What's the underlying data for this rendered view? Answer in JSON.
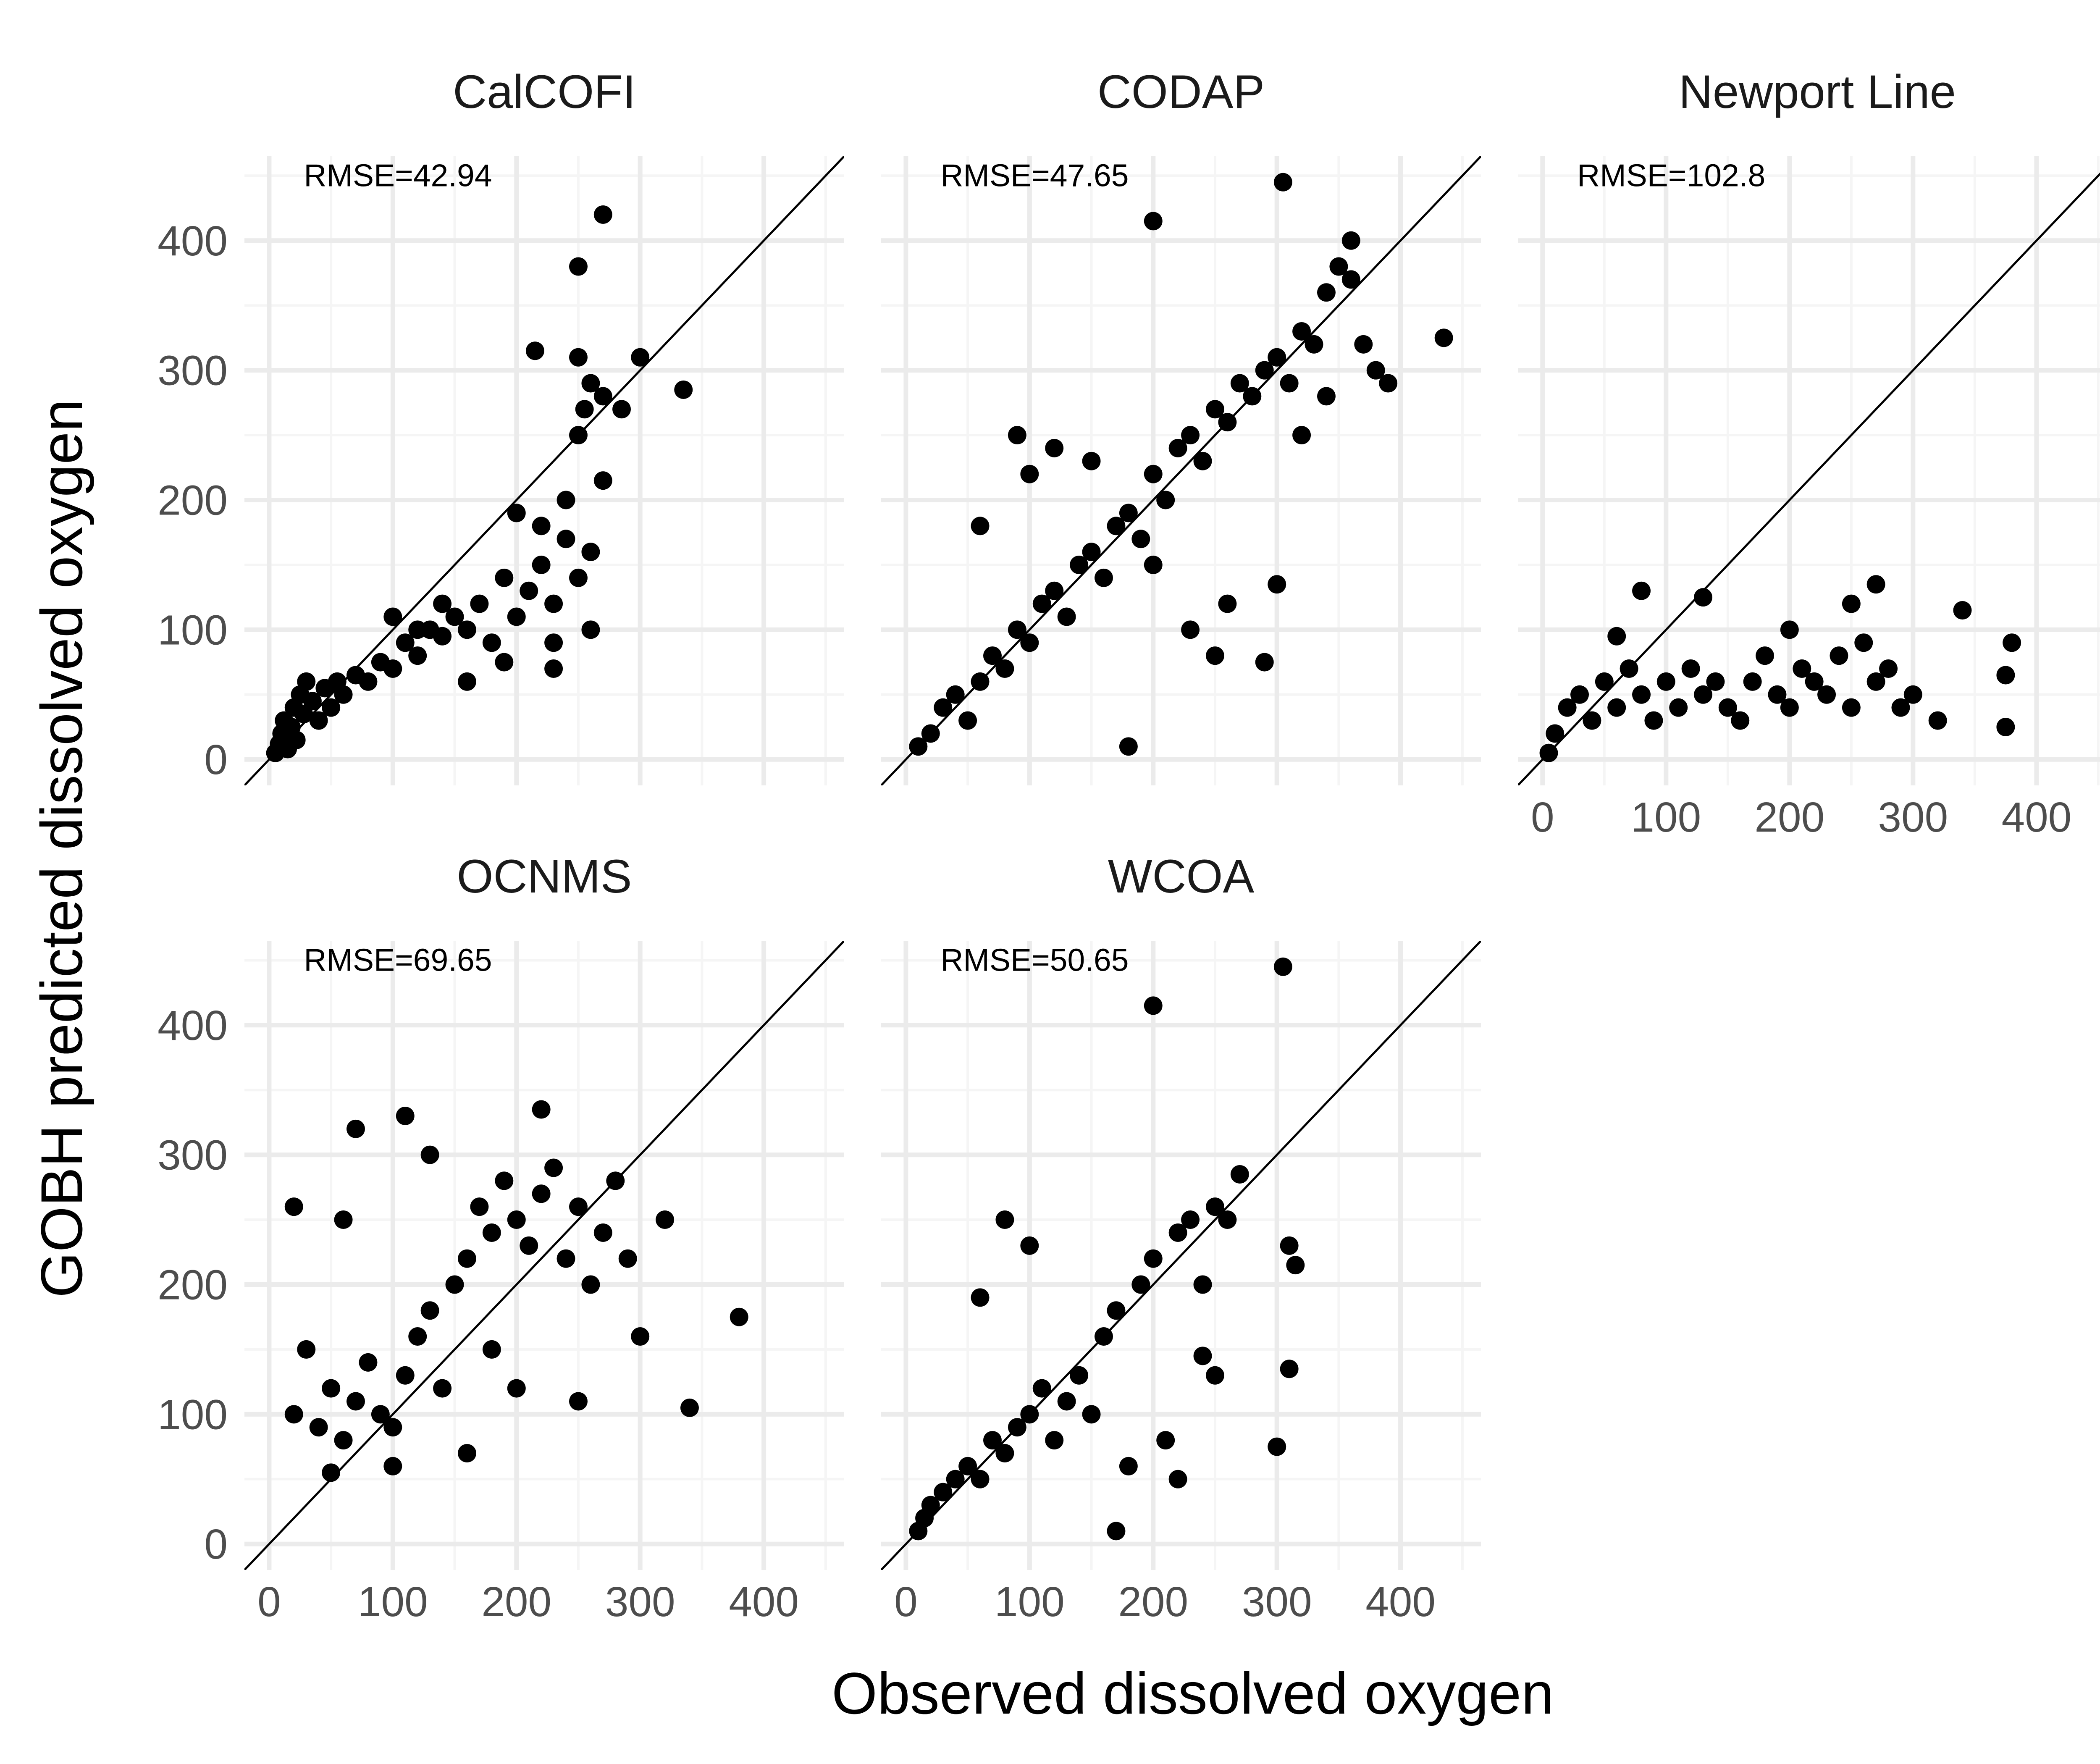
{
  "chart_data": {
    "type": "scatter",
    "xlabel": "Observed dissolved oxygen",
    "ylabel": "GOBH predicted dissolved oxygen",
    "xlim": [
      -20,
      465
    ],
    "ylim": [
      -20,
      465
    ],
    "x_ticks": [
      0,
      100,
      200,
      300,
      400
    ],
    "y_ticks": [
      0,
      100,
      200,
      300,
      400
    ],
    "grid": true,
    "reference_line": "y = x",
    "colors": {
      "points": "#000000",
      "grid_major": "#ebebeb",
      "grid_minor": "#f5f5f5"
    },
    "panels": [
      {
        "name": "CalCOFI",
        "rmse_label": "RMSE=42.94",
        "points": [
          [
            5,
            5
          ],
          [
            8,
            12
          ],
          [
            10,
            20
          ],
          [
            12,
            30
          ],
          [
            15,
            8
          ],
          [
            18,
            25
          ],
          [
            20,
            40
          ],
          [
            22,
            15
          ],
          [
            25,
            50
          ],
          [
            28,
            35
          ],
          [
            30,
            60
          ],
          [
            35,
            45
          ],
          [
            40,
            30
          ],
          [
            45,
            55
          ],
          [
            50,
            40
          ],
          [
            55,
            60
          ],
          [
            60,
            50
          ],
          [
            70,
            65
          ],
          [
            80,
            60
          ],
          [
            90,
            75
          ],
          [
            100,
            70
          ],
          [
            110,
            90
          ],
          [
            120,
            80
          ],
          [
            130,
            100
          ],
          [
            140,
            95
          ],
          [
            150,
            110
          ],
          [
            160,
            100
          ],
          [
            170,
            120
          ],
          [
            180,
            90
          ],
          [
            190,
            140
          ],
          [
            200,
            110
          ],
          [
            210,
            130
          ],
          [
            220,
            150
          ],
          [
            230,
            120
          ],
          [
            240,
            170
          ],
          [
            250,
            140
          ],
          [
            260,
            160
          ],
          [
            200,
            190
          ],
          [
            220,
            180
          ],
          [
            240,
            200
          ],
          [
            250,
            250
          ],
          [
            255,
            270
          ],
          [
            260,
            290
          ],
          [
            270,
            280
          ],
          [
            285,
            270
          ],
          [
            300,
            310
          ],
          [
            335,
            285
          ],
          [
            215,
            315
          ],
          [
            250,
            310
          ],
          [
            270,
            420
          ],
          [
            250,
            380
          ],
          [
            270,
            215
          ],
          [
            190,
            75
          ],
          [
            230,
            70
          ],
          [
            160,
            60
          ],
          [
            120,
            100
          ],
          [
            140,
            120
          ],
          [
            100,
            110
          ],
          [
            260,
            100
          ],
          [
            230,
            90
          ]
        ]
      },
      {
        "name": "CODAP",
        "rmse_label": "RMSE=47.65",
        "points": [
          [
            10,
            10
          ],
          [
            20,
            20
          ],
          [
            30,
            40
          ],
          [
            40,
            50
          ],
          [
            50,
            30
          ],
          [
            60,
            60
          ],
          [
            70,
            80
          ],
          [
            80,
            70
          ],
          [
            90,
            100
          ],
          [
            100,
            90
          ],
          [
            110,
            120
          ],
          [
            120,
            130
          ],
          [
            130,
            110
          ],
          [
            140,
            150
          ],
          [
            150,
            160
          ],
          [
            160,
            140
          ],
          [
            170,
            180
          ],
          [
            180,
            190
          ],
          [
            190,
            170
          ],
          [
            200,
            220
          ],
          [
            210,
            200
          ],
          [
            220,
            240
          ],
          [
            230,
            250
          ],
          [
            240,
            230
          ],
          [
            250,
            270
          ],
          [
            260,
            260
          ],
          [
            270,
            290
          ],
          [
            280,
            280
          ],
          [
            290,
            300
          ],
          [
            300,
            310
          ],
          [
            310,
            290
          ],
          [
            320,
            330
          ],
          [
            330,
            320
          ],
          [
            340,
            360
          ],
          [
            350,
            380
          ],
          [
            360,
            370
          ],
          [
            360,
            400
          ],
          [
            370,
            320
          ],
          [
            380,
            300
          ],
          [
            390,
            290
          ],
          [
            200,
            415
          ],
          [
            305,
            445
          ],
          [
            435,
            325
          ],
          [
            180,
            10
          ],
          [
            250,
            80
          ],
          [
            300,
            135
          ],
          [
            290,
            75
          ],
          [
            150,
            230
          ],
          [
            120,
            240
          ],
          [
            90,
            250
          ],
          [
            60,
            180
          ],
          [
            100,
            220
          ],
          [
            200,
            150
          ],
          [
            230,
            100
          ],
          [
            260,
            120
          ],
          [
            320,
            250
          ],
          [
            340,
            280
          ]
        ]
      },
      {
        "name": "Newport Line",
        "rmse_label": "RMSE=102.8",
        "points": [
          [
            5,
            5
          ],
          [
            10,
            20
          ],
          [
            20,
            40
          ],
          [
            30,
            50
          ],
          [
            40,
            30
          ],
          [
            50,
            60
          ],
          [
            60,
            40
          ],
          [
            70,
            70
          ],
          [
            80,
            50
          ],
          [
            90,
            30
          ],
          [
            100,
            60
          ],
          [
            110,
            40
          ],
          [
            120,
            70
          ],
          [
            130,
            50
          ],
          [
            140,
            60
          ],
          [
            150,
            40
          ],
          [
            160,
            30
          ],
          [
            170,
            60
          ],
          [
            180,
            80
          ],
          [
            190,
            50
          ],
          [
            200,
            40
          ],
          [
            210,
            70
          ],
          [
            220,
            60
          ],
          [
            230,
            50
          ],
          [
            240,
            80
          ],
          [
            250,
            40
          ],
          [
            260,
            90
          ],
          [
            270,
            60
          ],
          [
            280,
            70
          ],
          [
            290,
            40
          ],
          [
            300,
            50
          ],
          [
            320,
            30
          ],
          [
            340,
            115
          ],
          [
            375,
            25
          ],
          [
            375,
            65
          ],
          [
            380,
            90
          ],
          [
            80,
            130
          ],
          [
            130,
            125
          ],
          [
            250,
            120
          ],
          [
            270,
            135
          ],
          [
            60,
            95
          ],
          [
            200,
            100
          ]
        ]
      },
      {
        "name": "OCNMS",
        "rmse_label": "RMSE=69.65",
        "points": [
          [
            20,
            100
          ],
          [
            30,
            150
          ],
          [
            40,
            90
          ],
          [
            50,
            120
          ],
          [
            60,
            80
          ],
          [
            70,
            110
          ],
          [
            80,
            140
          ],
          [
            90,
            100
          ],
          [
            100,
            90
          ],
          [
            110,
            130
          ],
          [
            120,
            160
          ],
          [
            130,
            180
          ],
          [
            140,
            120
          ],
          [
            150,
            200
          ],
          [
            160,
            220
          ],
          [
            170,
            260
          ],
          [
            180,
            240
          ],
          [
            190,
            280
          ],
          [
            200,
            250
          ],
          [
            210,
            230
          ],
          [
            220,
            270
          ],
          [
            230,
            290
          ],
          [
            240,
            220
          ],
          [
            250,
            260
          ],
          [
            260,
            200
          ],
          [
            270,
            240
          ],
          [
            280,
            280
          ],
          [
            290,
            220
          ],
          [
            300,
            160
          ],
          [
            320,
            250
          ],
          [
            340,
            105
          ],
          [
            380,
            175
          ],
          [
            220,
            335
          ],
          [
            110,
            330
          ],
          [
            70,
            320
          ],
          [
            20,
            260
          ],
          [
            60,
            250
          ],
          [
            130,
            300
          ],
          [
            180,
            150
          ],
          [
            200,
            120
          ],
          [
            250,
            110
          ],
          [
            160,
            70
          ],
          [
            100,
            60
          ],
          [
            50,
            55
          ]
        ]
      },
      {
        "name": "WCOA",
        "rmse_label": "RMSE=50.65",
        "points": [
          [
            10,
            10
          ],
          [
            15,
            20
          ],
          [
            20,
            30
          ],
          [
            30,
            40
          ],
          [
            40,
            50
          ],
          [
            50,
            60
          ],
          [
            60,
            50
          ],
          [
            70,
            80
          ],
          [
            80,
            70
          ],
          [
            90,
            90
          ],
          [
            100,
            100
          ],
          [
            110,
            120
          ],
          [
            120,
            80
          ],
          [
            130,
            110
          ],
          [
            140,
            130
          ],
          [
            150,
            100
          ],
          [
            160,
            160
          ],
          [
            170,
            180
          ],
          [
            180,
            60
          ],
          [
            190,
            200
          ],
          [
            200,
            220
          ],
          [
            210,
            80
          ],
          [
            220,
            240
          ],
          [
            230,
            250
          ],
          [
            240,
            200
          ],
          [
            250,
            260
          ],
          [
            260,
            250
          ],
          [
            270,
            285
          ],
          [
            200,
            415
          ],
          [
            305,
            445
          ],
          [
            310,
            230
          ],
          [
            315,
            215
          ],
          [
            310,
            135
          ],
          [
            300,
            75
          ],
          [
            240,
            145
          ],
          [
            170,
            10
          ],
          [
            80,
            250
          ],
          [
            100,
            230
          ],
          [
            60,
            190
          ],
          [
            220,
            50
          ],
          [
            250,
            130
          ]
        ]
      }
    ]
  }
}
